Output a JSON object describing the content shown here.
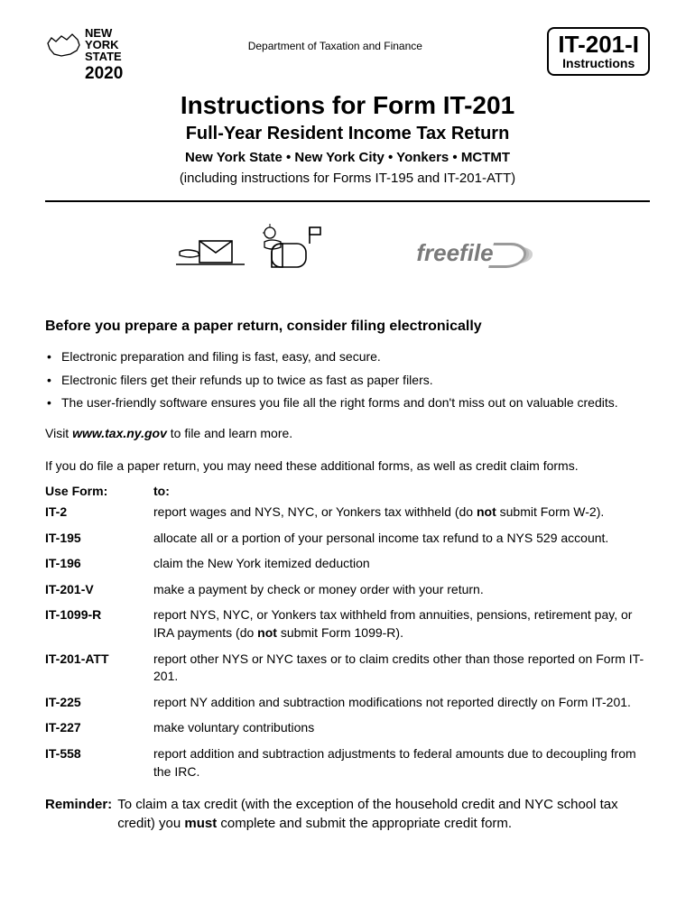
{
  "header": {
    "logo_line1": "NEW",
    "logo_line2": "YORK",
    "logo_line3": "STATE",
    "year": "2020",
    "department": "Department of Taxation and Finance",
    "form_code": "IT-201-I",
    "form_label": "Instructions"
  },
  "title": {
    "main": "Instructions for Form IT-201",
    "sub": "Full-Year Resident Income Tax Return",
    "jurisdictions": "New York State  •  New York City  •  Yonkers  •  MCTMT",
    "including": "(including instructions for Forms IT-195 and IT-201-ATT)"
  },
  "freefile_text": "freefile",
  "section_heading": "Before you prepare a paper return, consider filing electronically",
  "bullets": [
    "Electronic preparation and filing is fast, easy, and secure.",
    "Electronic filers get their refunds up to twice as fast as paper filers.",
    "The user-friendly software ensures you file all the right forms and don't miss out on valuable credits."
  ],
  "visit_prefix": "Visit ",
  "visit_link": "www.tax.ny.gov",
  "visit_suffix": " to file and learn more.",
  "paper_line": "If you do file a paper return, you may need these additional forms, as well as credit claim forms.",
  "table_header": {
    "form": "Use Form:",
    "to": "to:"
  },
  "forms": [
    {
      "code": "IT-2",
      "desc_before": "report wages and NYS, NYC, or Yonkers tax withheld (do ",
      "desc_bold": "not",
      "desc_after": " submit Form W-2)."
    },
    {
      "code": "IT-195",
      "desc_before": "allocate all or a portion of your personal income tax refund to a NYS 529 account.",
      "desc_bold": "",
      "desc_after": ""
    },
    {
      "code": "IT-196",
      "desc_before": "claim the New York itemized deduction",
      "desc_bold": "",
      "desc_after": ""
    },
    {
      "code": "IT-201-V",
      "desc_before": "make a payment by check or money order with your return.",
      "desc_bold": "",
      "desc_after": ""
    },
    {
      "code": "IT-1099-R",
      "desc_before": "report NYS, NYC, or Yonkers tax withheld from annuities, pensions, retirement pay, or IRA payments (do ",
      "desc_bold": "not",
      "desc_after": " submit Form 1099-R)."
    },
    {
      "code": "IT-201-ATT",
      "desc_before": "report other NYS or NYC taxes or to claim credits other than those reported on Form IT-201.",
      "desc_bold": "",
      "desc_after": ""
    },
    {
      "code": "IT-225",
      "desc_before": "report NY addition and subtraction modifications not reported directly on Form IT-201.",
      "desc_bold": "",
      "desc_after": ""
    },
    {
      "code": "IT-227",
      "desc_before": "make voluntary contributions",
      "desc_bold": "",
      "desc_after": ""
    },
    {
      "code": "IT-558",
      "desc_before": "report addition and subtraction adjustments to federal amounts due to decoupling from the IRC.",
      "desc_bold": "",
      "desc_after": ""
    }
  ],
  "reminder": {
    "label": "Reminder:",
    "before": "To claim a tax credit (with the exception of the household credit and NYC school tax credit) you ",
    "bold": "must",
    "after": " complete and submit the appropriate credit form."
  },
  "colors": {
    "text": "#000000",
    "bg": "#ffffff",
    "freefile_gray": "#7a7a7a"
  }
}
